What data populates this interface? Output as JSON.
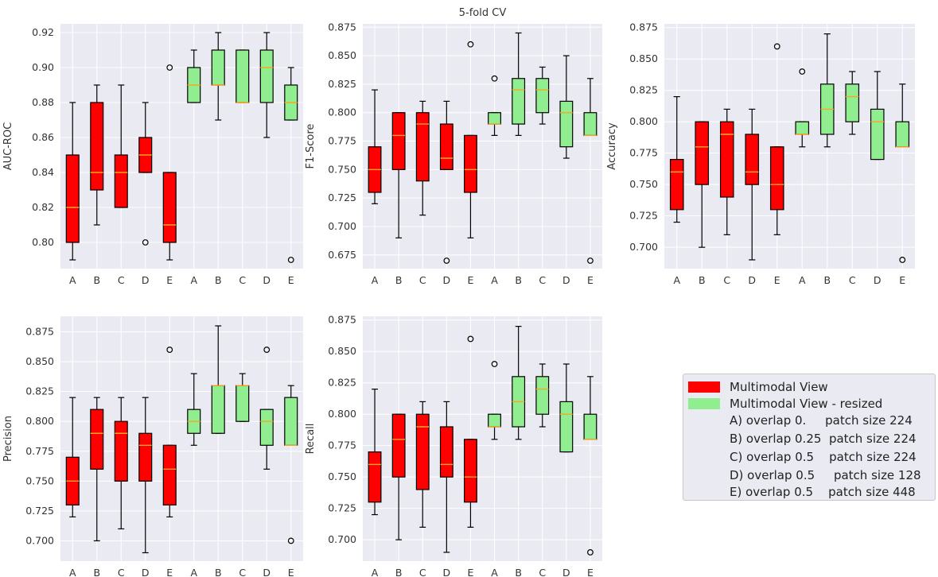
{
  "figure_title": "5-fold CV",
  "colors": {
    "multimodal": "#ff0000",
    "resized": "#90ee90",
    "median": "#f5a623",
    "panel_bg": "#eaeaf2",
    "grid": "#ffffff"
  },
  "legend": {
    "series": [
      {
        "label": "Multimodal View",
        "color": "#ff0000"
      },
      {
        "label": "Multimodal View - resized",
        "color": "#90ee90"
      }
    ],
    "notes": [
      "A) overlap 0.     patch size 224",
      "B) overlap 0.25  patch size 224",
      "C) overlap 0.5    patch size 224",
      "D) overlap 0.5     patch size 128",
      "E) overlap 0.5    patch size 448"
    ]
  },
  "chart_data": [
    {
      "type": "box",
      "ylabel": "AUC-ROC",
      "ylim": [
        0.785,
        0.925
      ],
      "yticks": [
        "0.80",
        "0.82",
        "0.84",
        "0.86",
        "0.88",
        "0.90",
        "0.92"
      ],
      "categories": [
        "A",
        "B",
        "C",
        "D",
        "E",
        "A",
        "B",
        "C",
        "D",
        "E"
      ],
      "series": [
        {
          "name": "Multimodal View",
          "boxes": [
            {
              "whislo": 0.79,
              "q1": 0.8,
              "med": 0.82,
              "q3": 0.85,
              "whishi": 0.88,
              "fliers": []
            },
            {
              "whislo": 0.81,
              "q1": 0.83,
              "med": 0.84,
              "q3": 0.88,
              "whishi": 0.89,
              "fliers": []
            },
            {
              "whislo": 0.82,
              "q1": 0.82,
              "med": 0.84,
              "q3": 0.85,
              "whishi": 0.89,
              "fliers": []
            },
            {
              "whislo": 0.84,
              "q1": 0.84,
              "med": 0.85,
              "q3": 0.86,
              "whishi": 0.88,
              "fliers": [
                0.8
              ]
            },
            {
              "whislo": 0.79,
              "q1": 0.8,
              "med": 0.81,
              "q3": 0.84,
              "whishi": 0.84,
              "fliers": [
                0.9
              ]
            }
          ]
        },
        {
          "name": "Multimodal View - resized",
          "boxes": [
            {
              "whislo": 0.88,
              "q1": 0.88,
              "med": 0.89,
              "q3": 0.9,
              "whishi": 0.91,
              "fliers": []
            },
            {
              "whislo": 0.87,
              "q1": 0.89,
              "med": 0.89,
              "q3": 0.91,
              "whishi": 0.92,
              "fliers": []
            },
            {
              "whislo": 0.88,
              "q1": 0.88,
              "med": 0.88,
              "q3": 0.91,
              "whishi": 0.91,
              "fliers": []
            },
            {
              "whislo": 0.86,
              "q1": 0.88,
              "med": 0.9,
              "q3": 0.91,
              "whishi": 0.92,
              "fliers": []
            },
            {
              "whislo": 0.87,
              "q1": 0.87,
              "med": 0.88,
              "q3": 0.89,
              "whishi": 0.9,
              "fliers": [
                0.79
              ]
            }
          ]
        }
      ]
    },
    {
      "type": "box",
      "title": "5-fold CV",
      "ylabel": "F1-Score",
      "ylim": [
        0.663,
        0.878
      ],
      "yticks": [
        "0.675",
        "0.700",
        "0.725",
        "0.750",
        "0.775",
        "0.800",
        "0.825",
        "0.850",
        "0.875"
      ],
      "categories": [
        "A",
        "B",
        "C",
        "D",
        "E",
        "A",
        "B",
        "C",
        "D",
        "E"
      ],
      "series": [
        {
          "name": "Multimodal View",
          "boxes": [
            {
              "whislo": 0.72,
              "q1": 0.73,
              "med": 0.75,
              "q3": 0.77,
              "whishi": 0.82,
              "fliers": []
            },
            {
              "whislo": 0.69,
              "q1": 0.75,
              "med": 0.78,
              "q3": 0.8,
              "whishi": 0.8,
              "fliers": []
            },
            {
              "whislo": 0.71,
              "q1": 0.74,
              "med": 0.79,
              "q3": 0.8,
              "whishi": 0.81,
              "fliers": []
            },
            {
              "whislo": 0.75,
              "q1": 0.75,
              "med": 0.76,
              "q3": 0.79,
              "whishi": 0.81,
              "fliers": [
                0.67
              ]
            },
            {
              "whislo": 0.69,
              "q1": 0.73,
              "med": 0.75,
              "q3": 0.78,
              "whishi": 0.78,
              "fliers": [
                0.86
              ]
            }
          ]
        },
        {
          "name": "Multimodal View - resized",
          "boxes": [
            {
              "whislo": 0.78,
              "q1": 0.79,
              "med": 0.79,
              "q3": 0.8,
              "whishi": 0.8,
              "fliers": [
                0.83
              ]
            },
            {
              "whislo": 0.78,
              "q1": 0.79,
              "med": 0.82,
              "q3": 0.83,
              "whishi": 0.87,
              "fliers": []
            },
            {
              "whislo": 0.79,
              "q1": 0.8,
              "med": 0.82,
              "q3": 0.83,
              "whishi": 0.84,
              "fliers": []
            },
            {
              "whislo": 0.76,
              "q1": 0.77,
              "med": 0.8,
              "q3": 0.81,
              "whishi": 0.85,
              "fliers": []
            },
            {
              "whislo": 0.78,
              "q1": 0.78,
              "med": 0.78,
              "q3": 0.8,
              "whishi": 0.83,
              "fliers": [
                0.67
              ]
            }
          ]
        }
      ]
    },
    {
      "type": "box",
      "ylabel": "Accuracy",
      "ylim": [
        0.683,
        0.878
      ],
      "yticks": [
        "0.700",
        "0.725",
        "0.750",
        "0.775",
        "0.800",
        "0.825",
        "0.850",
        "0.875"
      ],
      "categories": [
        "A",
        "B",
        "C",
        "D",
        "E",
        "A",
        "B",
        "C",
        "D",
        "E"
      ],
      "series": [
        {
          "name": "Multimodal View",
          "boxes": [
            {
              "whislo": 0.72,
              "q1": 0.73,
              "med": 0.76,
              "q3": 0.77,
              "whishi": 0.82,
              "fliers": []
            },
            {
              "whislo": 0.7,
              "q1": 0.75,
              "med": 0.78,
              "q3": 0.8,
              "whishi": 0.8,
              "fliers": []
            },
            {
              "whislo": 0.71,
              "q1": 0.74,
              "med": 0.79,
              "q3": 0.8,
              "whishi": 0.81,
              "fliers": []
            },
            {
              "whislo": 0.69,
              "q1": 0.75,
              "med": 0.76,
              "q3": 0.79,
              "whishi": 0.81,
              "fliers": []
            },
            {
              "whislo": 0.71,
              "q1": 0.73,
              "med": 0.75,
              "q3": 0.78,
              "whishi": 0.78,
              "fliers": [
                0.86
              ]
            }
          ]
        },
        {
          "name": "Multimodal View - resized",
          "boxes": [
            {
              "whislo": 0.78,
              "q1": 0.79,
              "med": 0.79,
              "q3": 0.8,
              "whishi": 0.8,
              "fliers": [
                0.84
              ]
            },
            {
              "whislo": 0.78,
              "q1": 0.79,
              "med": 0.81,
              "q3": 0.83,
              "whishi": 0.87,
              "fliers": []
            },
            {
              "whislo": 0.79,
              "q1": 0.8,
              "med": 0.82,
              "q3": 0.83,
              "whishi": 0.84,
              "fliers": []
            },
            {
              "whislo": 0.77,
              "q1": 0.77,
              "med": 0.8,
              "q3": 0.81,
              "whishi": 0.84,
              "fliers": []
            },
            {
              "whislo": 0.78,
              "q1": 0.78,
              "med": 0.78,
              "q3": 0.8,
              "whishi": 0.83,
              "fliers": [
                0.69
              ]
            }
          ]
        }
      ]
    },
    {
      "type": "box",
      "ylabel": "Precision",
      "ylim": [
        0.683,
        0.888
      ],
      "yticks": [
        "0.700",
        "0.725",
        "0.750",
        "0.775",
        "0.800",
        "0.825",
        "0.850",
        "0.875"
      ],
      "categories": [
        "A",
        "B",
        "C",
        "D",
        "E",
        "A",
        "B",
        "C",
        "D",
        "E"
      ],
      "series": [
        {
          "name": "Multimodal View",
          "boxes": [
            {
              "whislo": 0.72,
              "q1": 0.73,
              "med": 0.75,
              "q3": 0.77,
              "whishi": 0.82,
              "fliers": []
            },
            {
              "whislo": 0.7,
              "q1": 0.76,
              "med": 0.79,
              "q3": 0.81,
              "whishi": 0.82,
              "fliers": []
            },
            {
              "whislo": 0.71,
              "q1": 0.75,
              "med": 0.79,
              "q3": 0.8,
              "whishi": 0.82,
              "fliers": []
            },
            {
              "whislo": 0.69,
              "q1": 0.75,
              "med": 0.78,
              "q3": 0.79,
              "whishi": 0.82,
              "fliers": []
            },
            {
              "whislo": 0.72,
              "q1": 0.73,
              "med": 0.76,
              "q3": 0.78,
              "whishi": 0.78,
              "fliers": [
                0.86
              ]
            }
          ]
        },
        {
          "name": "Multimodal View - resized",
          "boxes": [
            {
              "whislo": 0.78,
              "q1": 0.79,
              "med": 0.8,
              "q3": 0.81,
              "whishi": 0.84,
              "fliers": []
            },
            {
              "whislo": 0.79,
              "q1": 0.79,
              "med": 0.83,
              "q3": 0.83,
              "whishi": 0.88,
              "fliers": []
            },
            {
              "whislo": 0.8,
              "q1": 0.8,
              "med": 0.83,
              "q3": 0.83,
              "whishi": 0.84,
              "fliers": []
            },
            {
              "whislo": 0.76,
              "q1": 0.78,
              "med": 0.8,
              "q3": 0.81,
              "whishi": 0.81,
              "fliers": [
                0.86
              ]
            },
            {
              "whislo": 0.78,
              "q1": 0.78,
              "med": 0.78,
              "q3": 0.82,
              "whishi": 0.83,
              "fliers": [
                0.7
              ]
            }
          ]
        }
      ]
    },
    {
      "type": "box",
      "ylabel": "Recall",
      "ylim": [
        0.683,
        0.878
      ],
      "yticks": [
        "0.700",
        "0.725",
        "0.750",
        "0.775",
        "0.800",
        "0.825",
        "0.850",
        "0.875"
      ],
      "categories": [
        "A",
        "B",
        "C",
        "D",
        "E",
        "A",
        "B",
        "C",
        "D",
        "E"
      ],
      "series": [
        {
          "name": "Multimodal View",
          "boxes": [
            {
              "whislo": 0.72,
              "q1": 0.73,
              "med": 0.76,
              "q3": 0.77,
              "whishi": 0.82,
              "fliers": []
            },
            {
              "whislo": 0.7,
              "q1": 0.75,
              "med": 0.78,
              "q3": 0.8,
              "whishi": 0.8,
              "fliers": []
            },
            {
              "whislo": 0.71,
              "q1": 0.74,
              "med": 0.79,
              "q3": 0.8,
              "whishi": 0.81,
              "fliers": []
            },
            {
              "whislo": 0.69,
              "q1": 0.75,
              "med": 0.76,
              "q3": 0.79,
              "whishi": 0.81,
              "fliers": []
            },
            {
              "whislo": 0.71,
              "q1": 0.73,
              "med": 0.75,
              "q3": 0.78,
              "whishi": 0.78,
              "fliers": [
                0.86
              ]
            }
          ]
        },
        {
          "name": "Multimodal View - resized",
          "boxes": [
            {
              "whislo": 0.78,
              "q1": 0.79,
              "med": 0.79,
              "q3": 0.8,
              "whishi": 0.8,
              "fliers": [
                0.84
              ]
            },
            {
              "whislo": 0.78,
              "q1": 0.79,
              "med": 0.81,
              "q3": 0.83,
              "whishi": 0.87,
              "fliers": []
            },
            {
              "whislo": 0.79,
              "q1": 0.8,
              "med": 0.82,
              "q3": 0.83,
              "whishi": 0.84,
              "fliers": []
            },
            {
              "whislo": 0.77,
              "q1": 0.77,
              "med": 0.8,
              "q3": 0.81,
              "whishi": 0.84,
              "fliers": []
            },
            {
              "whislo": 0.78,
              "q1": 0.78,
              "med": 0.78,
              "q3": 0.8,
              "whishi": 0.83,
              "fliers": [
                0.69
              ]
            }
          ]
        }
      ]
    }
  ]
}
